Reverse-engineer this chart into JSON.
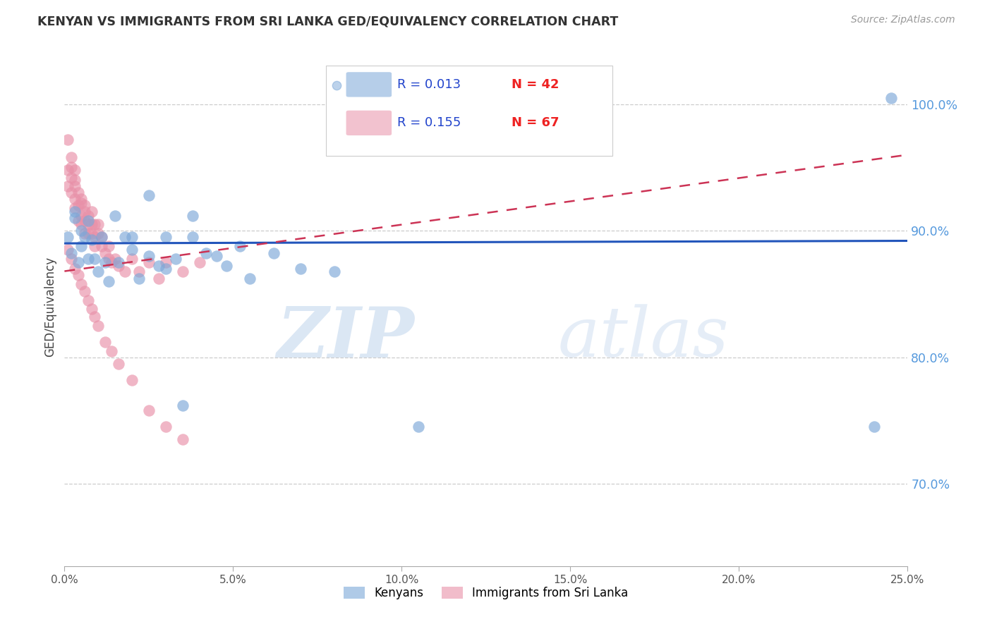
{
  "title": "KENYAN VS IMMIGRANTS FROM SRI LANKA GED/EQUIVALENCY CORRELATION CHART",
  "source": "Source: ZipAtlas.com",
  "ylabel": "GED/Equivalency",
  "ytick_labels": [
    "70.0%",
    "80.0%",
    "90.0%",
    "100.0%"
  ],
  "ytick_values": [
    0.7,
    0.8,
    0.9,
    1.0
  ],
  "xtick_values": [
    0.0,
    0.05,
    0.1,
    0.15,
    0.2,
    0.25
  ],
  "xtick_labels": [
    "0.0%",
    "5.0%",
    "10.0%",
    "15.0%",
    "20.0%",
    "25.0%"
  ],
  "xmin": 0.0,
  "xmax": 0.25,
  "ymin": 0.635,
  "ymax": 1.045,
  "legend_r1": "R = 0.013",
  "legend_n1": "N = 42",
  "legend_r2": "R = 0.155",
  "legend_n2": "N = 67",
  "color_kenyan": "#7BA7D8",
  "color_srilanka": "#E890A8",
  "color_trend_kenyan": "#2255BB",
  "color_trend_srilanka": "#CC3355",
  "watermark_zip": "ZIP",
  "watermark_atlas": "atlas",
  "kenyan_x": [
    0.001,
    0.002,
    0.003,
    0.003,
    0.004,
    0.005,
    0.005,
    0.006,
    0.007,
    0.007,
    0.008,
    0.009,
    0.01,
    0.011,
    0.012,
    0.013,
    0.015,
    0.016,
    0.018,
    0.02,
    0.022,
    0.025,
    0.028,
    0.03,
    0.033,
    0.038,
    0.042,
    0.048,
    0.055,
    0.062,
    0.07,
    0.08,
    0.02,
    0.025,
    0.03,
    0.038,
    0.045,
    0.052,
    0.24,
    0.245,
    0.105,
    0.035
  ],
  "kenyan_y": [
    0.895,
    0.882,
    0.915,
    0.91,
    0.875,
    0.888,
    0.9,
    0.895,
    0.878,
    0.908,
    0.893,
    0.878,
    0.868,
    0.895,
    0.875,
    0.86,
    0.912,
    0.875,
    0.895,
    0.895,
    0.862,
    0.928,
    0.872,
    0.895,
    0.878,
    0.912,
    0.882,
    0.872,
    0.862,
    0.882,
    0.87,
    0.868,
    0.885,
    0.88,
    0.87,
    0.895,
    0.88,
    0.888,
    0.745,
    1.005,
    0.745,
    0.762
  ],
  "srilanka_x": [
    0.001,
    0.001,
    0.001,
    0.002,
    0.002,
    0.002,
    0.002,
    0.003,
    0.003,
    0.003,
    0.003,
    0.003,
    0.004,
    0.004,
    0.004,
    0.005,
    0.005,
    0.005,
    0.005,
    0.006,
    0.006,
    0.006,
    0.006,
    0.007,
    0.007,
    0.007,
    0.008,
    0.008,
    0.008,
    0.009,
    0.009,
    0.009,
    0.01,
    0.01,
    0.011,
    0.011,
    0.012,
    0.013,
    0.013,
    0.014,
    0.015,
    0.016,
    0.018,
    0.02,
    0.022,
    0.025,
    0.028,
    0.03,
    0.035,
    0.04,
    0.001,
    0.002,
    0.003,
    0.004,
    0.005,
    0.006,
    0.007,
    0.008,
    0.009,
    0.01,
    0.012,
    0.014,
    0.016,
    0.02,
    0.025,
    0.03,
    0.035
  ],
  "srilanka_y": [
    0.972,
    0.948,
    0.935,
    0.95,
    0.942,
    0.93,
    0.958,
    0.94,
    0.925,
    0.948,
    0.935,
    0.918,
    0.93,
    0.92,
    0.908,
    0.922,
    0.912,
    0.925,
    0.905,
    0.915,
    0.908,
    0.898,
    0.92,
    0.912,
    0.905,
    0.898,
    0.905,
    0.915,
    0.898,
    0.905,
    0.895,
    0.888,
    0.898,
    0.905,
    0.888,
    0.895,
    0.882,
    0.878,
    0.888,
    0.875,
    0.878,
    0.872,
    0.868,
    0.878,
    0.868,
    0.875,
    0.862,
    0.875,
    0.868,
    0.875,
    0.885,
    0.878,
    0.87,
    0.865,
    0.858,
    0.852,
    0.845,
    0.838,
    0.832,
    0.825,
    0.812,
    0.805,
    0.795,
    0.782,
    0.758,
    0.745,
    0.735
  ],
  "trend_kenyan_x0": 0.0,
  "trend_kenyan_x1": 0.25,
  "trend_kenyan_y0": 0.89,
  "trend_kenyan_y1": 0.892,
  "trend_srilanka_x0": 0.0,
  "trend_srilanka_x1": 0.25,
  "trend_srilanka_y0": 0.868,
  "trend_srilanka_y1": 0.96
}
